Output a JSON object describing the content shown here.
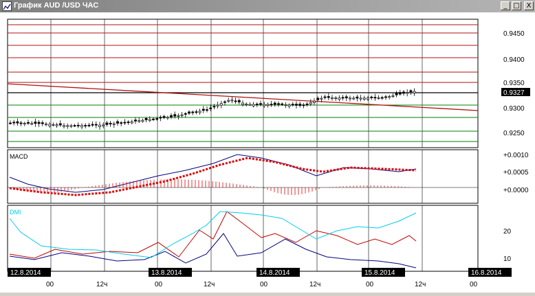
{
  "window": {
    "title": "График AUD /USD  ЧАС",
    "minimize_glyph": "_",
    "maximize_glyph": "□",
    "close_glyph": "X"
  },
  "price_panel": {
    "y_ticks": [
      "0.9450",
      "0.9400",
      "0.9350",
      "0.9300",
      "0.9250"
    ],
    "current_price": "0.9327",
    "colors": {
      "resistance": "#b01010",
      "support": "#008000",
      "trend": "#b01010",
      "candle": "#000000"
    }
  },
  "macd_panel": {
    "label": "MACD",
    "y_ticks": [
      "+0.0010",
      "+0.0005",
      "+0.0000"
    ],
    "colors": {
      "macd": "#000080",
      "signal": "#e00000",
      "histogram": "#e00000"
    }
  },
  "dmi_panel": {
    "label": "DMI",
    "y_ticks": [
      "20",
      "10"
    ],
    "colors": {
      "plus_di": "#000080",
      "minus_di": "#c00000",
      "adx": "#00ccee"
    }
  },
  "time_axis": {
    "dates": [
      "12.8.2014",
      "13.8.2014",
      "14.8.2014",
      "15.8.2014",
      "16.8.2014"
    ],
    "hours": [
      "00",
      "12ч",
      "00",
      "12ч",
      "00",
      "12ч",
      "00",
      "12ч",
      "00"
    ]
  }
}
